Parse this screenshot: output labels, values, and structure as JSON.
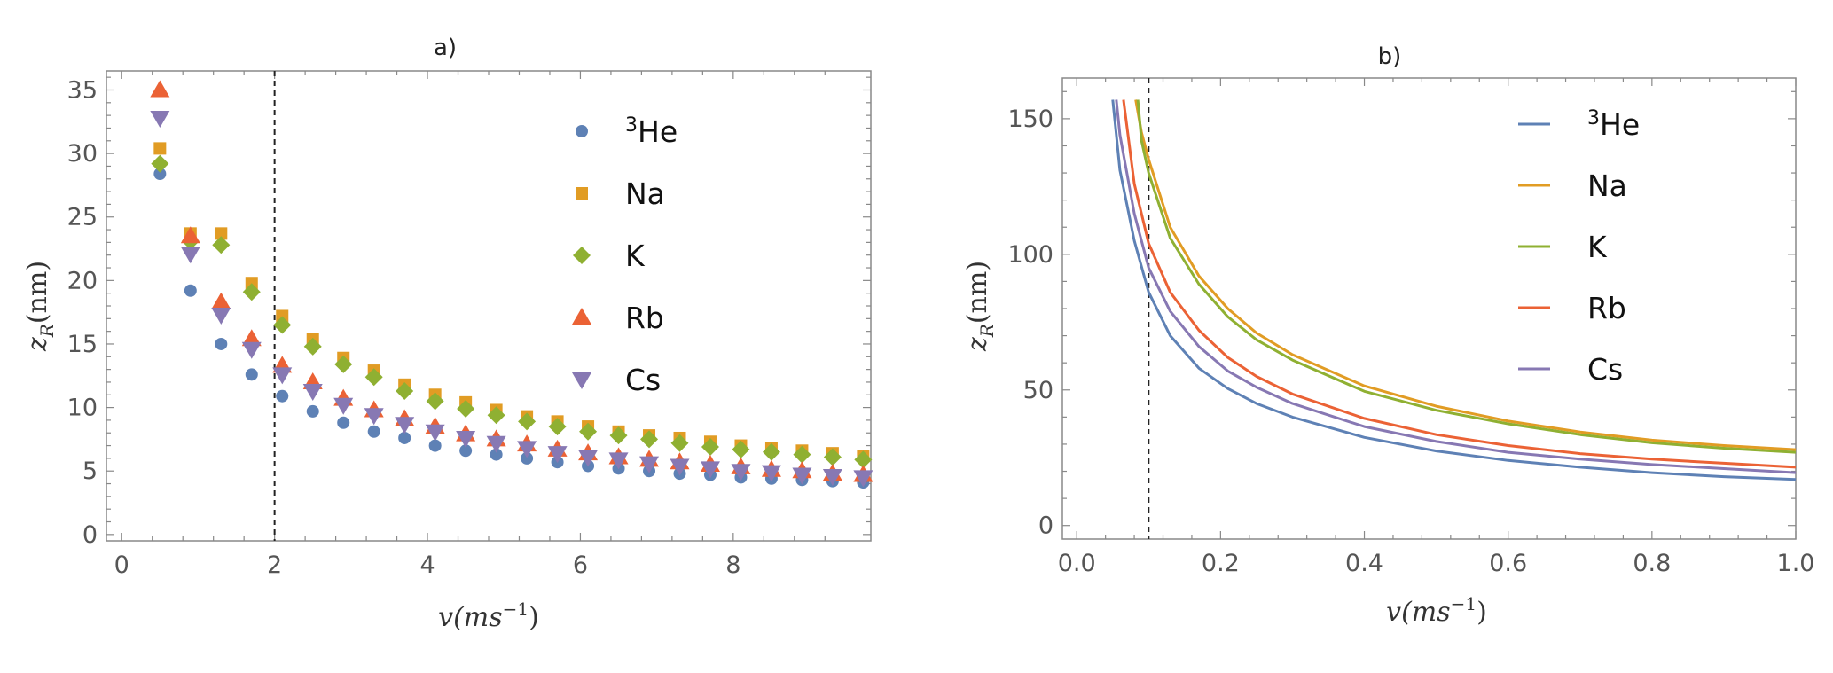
{
  "chart_data": [
    {
      "type": "scatter",
      "title": "a)",
      "xlabel_base": "v(ms",
      "xlabel_sup": "−1",
      "xlabel_end": ")",
      "ylabel_base": "z",
      "ylabel_sub": "R",
      "ylabel_unit": "(nm)",
      "xlim": [
        -0.2,
        9.8
      ],
      "ylim": [
        -0.5,
        36.5
      ],
      "xticks": [
        0,
        2,
        4,
        6,
        8
      ],
      "yticks": [
        0,
        5,
        10,
        15,
        20,
        25,
        30,
        35
      ],
      "reference_line_x": 2,
      "legend_position": "top-right",
      "x": [
        0.5,
        0.9,
        1.3,
        1.7,
        2.1,
        2.5,
        2.9,
        3.3,
        3.7,
        4.1,
        4.5,
        4.9,
        5.3,
        5.7,
        6.1,
        6.5,
        6.9,
        7.3,
        7.7,
        8.1,
        8.5,
        8.9,
        9.3,
        9.7
      ],
      "series": [
        {
          "name": "He",
          "name_sup": "3",
          "marker": "circle",
          "color": "#5E81B5",
          "values": [
            28.4,
            19.2,
            15.0,
            12.6,
            10.9,
            9.7,
            8.8,
            8.1,
            7.6,
            7.0,
            6.6,
            6.3,
            6.0,
            5.7,
            5.4,
            5.2,
            5.0,
            4.8,
            4.7,
            4.5,
            4.4,
            4.3,
            4.2,
            4.1
          ]
        },
        {
          "name": "Na",
          "name_sup": "",
          "marker": "square",
          "color": "#E19C24",
          "values": [
            30.4,
            23.7,
            23.7,
            19.8,
            17.2,
            15.4,
            13.9,
            12.9,
            11.8,
            11.0,
            10.4,
            9.8,
            9.3,
            8.9,
            8.5,
            8.1,
            7.8,
            7.6,
            7.3,
            7.0,
            6.8,
            6.6,
            6.4,
            6.2
          ]
        },
        {
          "name": "K",
          "name_sup": "",
          "marker": "diamond",
          "color": "#8FB032",
          "values": [
            29.2,
            23.1,
            22.8,
            19.1,
            16.5,
            14.8,
            13.4,
            12.4,
            11.3,
            10.5,
            9.9,
            9.4,
            8.9,
            8.5,
            8.1,
            7.8,
            7.5,
            7.2,
            6.9,
            6.7,
            6.5,
            6.3,
            6.1,
            5.9
          ]
        },
        {
          "name": "Rb",
          "name_sup": "",
          "marker": "triangle-up",
          "color": "#EB6235",
          "values": [
            35.0,
            23.5,
            18.3,
            15.4,
            13.3,
            12.0,
            10.7,
            9.8,
            9.1,
            8.5,
            7.9,
            7.5,
            7.1,
            6.7,
            6.4,
            6.1,
            5.9,
            5.7,
            5.5,
            5.3,
            5.1,
            5.0,
            4.8,
            4.7
          ]
        },
        {
          "name": "Cs",
          "name_sup": "",
          "marker": "triangle-down",
          "color": "#8778B3",
          "values": [
            32.8,
            22.1,
            17.3,
            14.6,
            12.6,
            11.3,
            10.2,
            9.4,
            8.7,
            8.1,
            7.6,
            7.2,
            6.8,
            6.4,
            6.1,
            5.9,
            5.6,
            5.4,
            5.2,
            5.0,
            4.9,
            4.7,
            4.6,
            4.5
          ]
        }
      ]
    },
    {
      "type": "line",
      "title": "b)",
      "xlabel_base": "v(ms",
      "xlabel_sup": "−1",
      "xlabel_end": ")",
      "ylabel_base": "z",
      "ylabel_sub": "R",
      "ylabel_unit": "(nm)",
      "xlim": [
        -0.02,
        1.0
      ],
      "ylim": [
        -5,
        165
      ],
      "xticks": [
        0.0,
        0.2,
        0.4,
        0.6,
        0.8,
        1.0
      ],
      "xtick_labels": [
        "0.0",
        "0.2",
        "0.4",
        "0.6",
        "0.8",
        "1.0"
      ],
      "yticks": [
        0,
        50,
        100,
        150
      ],
      "reference_line_x": 0.1,
      "legend_position": "top-right",
      "series": [
        {
          "name": "He",
          "name_sup": "3",
          "color": "#5E81B5",
          "points": [
            [
              0.05,
              157
            ],
            [
              0.06,
              131
            ],
            [
              0.08,
              105
            ],
            [
              0.1,
              86
            ],
            [
              0.13,
              70
            ],
            [
              0.17,
              58
            ],
            [
              0.21,
              50.5
            ],
            [
              0.25,
              45
            ],
            [
              0.3,
              40
            ],
            [
              0.4,
              32.5
            ],
            [
              0.5,
              27.5
            ],
            [
              0.6,
              24
            ],
            [
              0.7,
              21.5
            ],
            [
              0.8,
              19.5
            ],
            [
              0.9,
              18
            ],
            [
              1.0,
              17
            ]
          ]
        },
        {
          "name": "Na",
          "name_sup": "",
          "color": "#E19C24",
          "points": [
            [
              0.082,
              157
            ],
            [
              0.09,
              145
            ],
            [
              0.1,
              135
            ],
            [
              0.13,
              110
            ],
            [
              0.17,
              92
            ],
            [
              0.21,
              80
            ],
            [
              0.25,
              71
            ],
            [
              0.3,
              63
            ],
            [
              0.4,
              51.5
            ],
            [
              0.5,
              44
            ],
            [
              0.6,
              38.5
            ],
            [
              0.7,
              34.5
            ],
            [
              0.8,
              31.5
            ],
            [
              0.9,
              29.5
            ],
            [
              1.0,
              28
            ]
          ]
        },
        {
          "name": "K",
          "name_sup": "",
          "color": "#8FB032",
          "points": [
            [
              0.085,
              157
            ],
            [
              0.09,
              142
            ],
            [
              0.1,
              130
            ],
            [
              0.13,
              106
            ],
            [
              0.17,
              89
            ],
            [
              0.21,
              77
            ],
            [
              0.25,
              68.5
            ],
            [
              0.3,
              61
            ],
            [
              0.4,
              49.5
            ],
            [
              0.5,
              42.5
            ],
            [
              0.6,
              37.5
            ],
            [
              0.7,
              33.5
            ],
            [
              0.8,
              30.5
            ],
            [
              0.9,
              28.5
            ],
            [
              1.0,
              27
            ]
          ]
        },
        {
          "name": "Rb",
          "name_sup": "",
          "color": "#EB6235",
          "points": [
            [
              0.065,
              157
            ],
            [
              0.08,
              126
            ],
            [
              0.1,
              104
            ],
            [
              0.13,
              86
            ],
            [
              0.17,
              72
            ],
            [
              0.21,
              62
            ],
            [
              0.25,
              55
            ],
            [
              0.3,
              48.5
            ],
            [
              0.4,
              39.5
            ],
            [
              0.5,
              33.5
            ],
            [
              0.6,
              29.5
            ],
            [
              0.7,
              26.5
            ],
            [
              0.8,
              24.5
            ],
            [
              0.9,
              23
            ],
            [
              1.0,
              21.5
            ]
          ]
        },
        {
          "name": "Cs",
          "name_sup": "",
          "color": "#8778B3",
          "points": [
            [
              0.055,
              157
            ],
            [
              0.06,
              144
            ],
            [
              0.08,
              115
            ],
            [
              0.1,
              95
            ],
            [
              0.13,
              79
            ],
            [
              0.17,
              66
            ],
            [
              0.21,
              57
            ],
            [
              0.25,
              51
            ],
            [
              0.3,
              45
            ],
            [
              0.4,
              36.5
            ],
            [
              0.5,
              31
            ],
            [
              0.6,
              27
            ],
            [
              0.7,
              24.5
            ],
            [
              0.8,
              22.5
            ],
            [
              0.9,
              21
            ],
            [
              1.0,
              19.5
            ]
          ]
        }
      ]
    }
  ]
}
